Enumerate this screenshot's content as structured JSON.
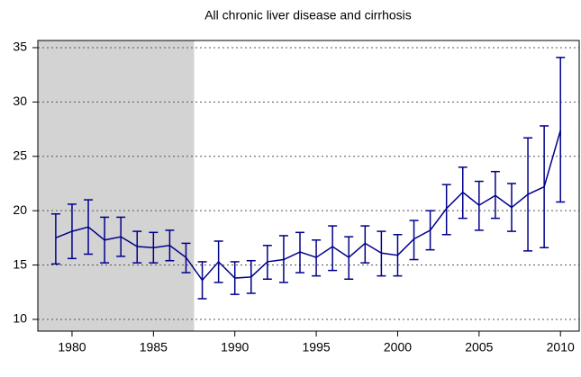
{
  "chart_data": {
    "type": "line",
    "title": "All chronic liver disease and cirrhosis",
    "x": [
      1979,
      1980,
      1981,
      1982,
      1983,
      1984,
      1985,
      1986,
      1987,
      1988,
      1989,
      1990,
      1991,
      1992,
      1993,
      1994,
      1995,
      1996,
      1997,
      1998,
      1999,
      2000,
      2001,
      2002,
      2003,
      2004,
      2005,
      2006,
      2007,
      2008,
      2009,
      2010
    ],
    "series": [
      {
        "color": "#00008b",
        "values": [
          17.5,
          18.1,
          18.5,
          17.3,
          17.6,
          16.7,
          16.6,
          16.8,
          15.7,
          13.6,
          15.3,
          13.8,
          13.9,
          15.3,
          15.5,
          16.2,
          15.7,
          16.7,
          15.7,
          17.0,
          16.1,
          15.9,
          17.4,
          18.2,
          20.2,
          21.7,
          20.5,
          21.4,
          20.3,
          21.5,
          22.2,
          27.4
        ],
        "lower": [
          15.1,
          15.6,
          16.0,
          15.2,
          15.8,
          15.2,
          15.2,
          15.4,
          14.3,
          11.9,
          13.4,
          12.3,
          12.4,
          13.7,
          13.4,
          14.3,
          14.0,
          14.5,
          13.7,
          15.2,
          14.0,
          14.0,
          15.5,
          16.4,
          17.8,
          19.3,
          18.2,
          19.3,
          18.1,
          16.3,
          16.6,
          20.8
        ],
        "upper": [
          19.7,
          20.6,
          21.0,
          19.4,
          19.4,
          18.1,
          18.0,
          18.2,
          17.0,
          15.3,
          17.2,
          15.3,
          15.4,
          16.8,
          17.7,
          18.0,
          17.3,
          18.6,
          17.6,
          18.6,
          18.1,
          17.8,
          19.1,
          20.0,
          22.4,
          24.0,
          22.7,
          23.6,
          22.5,
          26.7,
          27.8,
          34.1
        ]
      }
    ],
    "shade_end": 1987.5,
    "shade_color": "#d3d3d3",
    "xlim": [
      1977.9,
      2011.15
    ],
    "xticks": [
      1980,
      1985,
      1990,
      1995,
      2000,
      2005,
      2010
    ],
    "ylim": [
      8.92,
      35.66
    ],
    "yticks": [
      10,
      15,
      20,
      25,
      30,
      35
    ],
    "grid": true
  }
}
